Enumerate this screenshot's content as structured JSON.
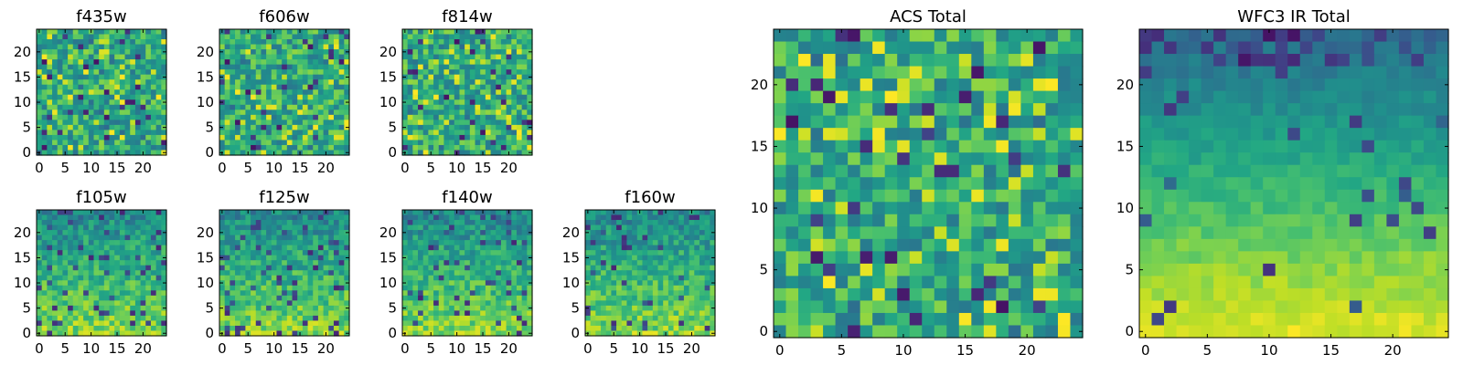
{
  "chart_data": {
    "type": "heatmap",
    "colormap": "viridis",
    "grid": false,
    "legend": false,
    "panels": [
      {
        "id": "f435w",
        "title": "f435w",
        "xlim": [
          0,
          24
        ],
        "ylim": [
          0,
          24
        ],
        "xticks": [
          "0",
          "5",
          "10",
          "15",
          "20"
        ],
        "yticks": [
          "0",
          "5",
          "10",
          "15",
          "20"
        ],
        "size": [
          25,
          25
        ],
        "pattern": "noise"
      },
      {
        "id": "f606w",
        "title": "f606w",
        "xlim": [
          0,
          24
        ],
        "ylim": [
          0,
          24
        ],
        "xticks": [
          "0",
          "5",
          "10",
          "15",
          "20"
        ],
        "yticks": [
          "0",
          "5",
          "10",
          "15",
          "20"
        ],
        "size": [
          25,
          25
        ],
        "pattern": "noise"
      },
      {
        "id": "f814w",
        "title": "f814w",
        "xlim": [
          0,
          24
        ],
        "ylim": [
          0,
          24
        ],
        "xticks": [
          "0",
          "5",
          "10",
          "15",
          "20"
        ],
        "yticks": [
          "0",
          "5",
          "10",
          "15",
          "20"
        ],
        "size": [
          25,
          25
        ],
        "pattern": "noise"
      },
      {
        "id": "f105w",
        "title": "f105w",
        "xlim": [
          0,
          24
        ],
        "ylim": [
          0,
          24
        ],
        "xticks": [
          "0",
          "5",
          "10",
          "15",
          "20"
        ],
        "yticks": [
          "0",
          "5",
          "10",
          "15",
          "20"
        ],
        "size": [
          25,
          25
        ],
        "pattern": "ir"
      },
      {
        "id": "f125w",
        "title": "f125w",
        "xlim": [
          0,
          24
        ],
        "ylim": [
          0,
          24
        ],
        "xticks": [
          "0",
          "5",
          "10",
          "15",
          "20"
        ],
        "yticks": [
          "0",
          "5",
          "10",
          "15",
          "20"
        ],
        "size": [
          25,
          25
        ],
        "pattern": "ir"
      },
      {
        "id": "f140w",
        "title": "f140w",
        "xlim": [
          0,
          24
        ],
        "ylim": [
          0,
          24
        ],
        "xticks": [
          "0",
          "5",
          "10",
          "15",
          "20"
        ],
        "yticks": [
          "0",
          "5",
          "10",
          "15",
          "20"
        ],
        "size": [
          25,
          25
        ],
        "pattern": "ir"
      },
      {
        "id": "f160w",
        "title": "f160w",
        "xlim": [
          0,
          24
        ],
        "ylim": [
          0,
          24
        ],
        "xticks": [
          "0",
          "5",
          "10",
          "15",
          "20"
        ],
        "yticks": [
          "0",
          "5",
          "10",
          "15",
          "20"
        ],
        "size": [
          25,
          25
        ],
        "pattern": "ir"
      },
      {
        "id": "acs-total",
        "title": "ACS Total",
        "xlim": [
          0,
          24
        ],
        "ylim": [
          0,
          24
        ],
        "xticks": [
          "0",
          "5",
          "10",
          "15",
          "20"
        ],
        "yticks": [
          "0",
          "5",
          "10",
          "15",
          "20"
        ],
        "size": [
          25,
          25
        ],
        "pattern": "noise"
      },
      {
        "id": "wfc3-ir-total",
        "title": "WFC3 IR Total",
        "xlim": [
          0,
          24
        ],
        "ylim": [
          0,
          24
        ],
        "xticks": [
          "0",
          "5",
          "10",
          "15",
          "20"
        ],
        "yticks": [
          "0",
          "5",
          "10",
          "15",
          "20"
        ],
        "size": [
          25,
          25
        ],
        "pattern": "gradient"
      }
    ]
  }
}
